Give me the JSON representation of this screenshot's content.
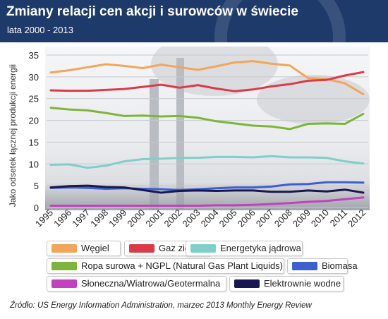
{
  "header": {
    "title": "Zmiany relacji cen akcji i surowców w świecie",
    "subtitle": "lata 2000 - 2013"
  },
  "source": "Źródło: US Energy Information Administration, marzec 2013 Monthly Energy Review",
  "chart_data": {
    "type": "line",
    "title": "Zmiany relacji cen akcji i surowców w świecie",
    "subtitle": "lata 2000 - 2013",
    "ylabel": "Jako odsetek łącznej produkcji energii",
    "xlabel": "",
    "ylim": [
      0,
      35
    ],
    "yticks": [
      0,
      5,
      10,
      15,
      20,
      25,
      30,
      35
    ],
    "grid": true,
    "legend_position": "bottom",
    "x": [
      1995,
      1996,
      1997,
      1998,
      1999,
      2000,
      2001,
      2002,
      2003,
      2004,
      2005,
      2006,
      2007,
      2008,
      2009,
      2010,
      2011,
      2012
    ],
    "series": [
      {
        "name": "Węgiel",
        "color": "#f2a65a",
        "values": [
          31.0,
          31.5,
          32.2,
          32.9,
          32.5,
          32.0,
          32.8,
          32.2,
          31.6,
          32.4,
          33.3,
          33.6,
          33.0,
          32.6,
          29.7,
          29.5,
          28.5,
          26.0
        ]
      },
      {
        "name": "Gaz ziemny",
        "color": "#d93b48",
        "values": [
          26.9,
          26.8,
          26.8,
          27.0,
          27.2,
          27.7,
          28.2,
          27.5,
          28.1,
          27.3,
          26.7,
          27.1,
          27.8,
          28.3,
          29.1,
          29.3,
          30.3,
          31.1
        ]
      },
      {
        "name": "Energetyka jądrowa",
        "color": "#7fcfc9",
        "values": [
          9.8,
          9.9,
          9.1,
          9.6,
          10.6,
          11.1,
          11.2,
          11.4,
          11.4,
          11.6,
          11.6,
          11.5,
          11.8,
          11.5,
          11.5,
          11.4,
          10.6,
          10.1
        ]
      },
      {
        "name": "Ropa surowa + NGPL (Natural Gas Plant Liquids)",
        "color": "#7db53a",
        "values": [
          22.9,
          22.5,
          22.3,
          21.7,
          21.0,
          21.1,
          20.9,
          21.0,
          20.6,
          19.8,
          19.3,
          18.8,
          18.6,
          18.0,
          19.2,
          19.3,
          19.2,
          21.5
        ]
      },
      {
        "name": "Biomasa",
        "color": "#3d5fcf",
        "values": [
          4.5,
          4.6,
          4.5,
          4.3,
          4.4,
          4.3,
          4.2,
          4.0,
          4.2,
          4.4,
          4.6,
          4.6,
          4.8,
          5.3,
          5.4,
          5.8,
          5.8,
          5.7
        ]
      },
      {
        "name": "Słoneczna/Wiatrowa/Geotermalna",
        "color": "#c43fc1",
        "values": [
          0.4,
          0.4,
          0.4,
          0.4,
          0.4,
          0.4,
          0.4,
          0.4,
          0.4,
          0.5,
          0.5,
          0.6,
          0.8,
          1.0,
          1.3,
          1.5,
          1.9,
          2.3
        ]
      },
      {
        "name": "Elektrownie wodne",
        "color": "#1a1650",
        "values": [
          4.6,
          4.9,
          5.0,
          4.7,
          4.6,
          4.0,
          3.4,
          3.8,
          3.9,
          3.8,
          3.9,
          3.9,
          3.6,
          3.6,
          3.9,
          3.7,
          4.1,
          3.4
        ]
      }
    ]
  }
}
